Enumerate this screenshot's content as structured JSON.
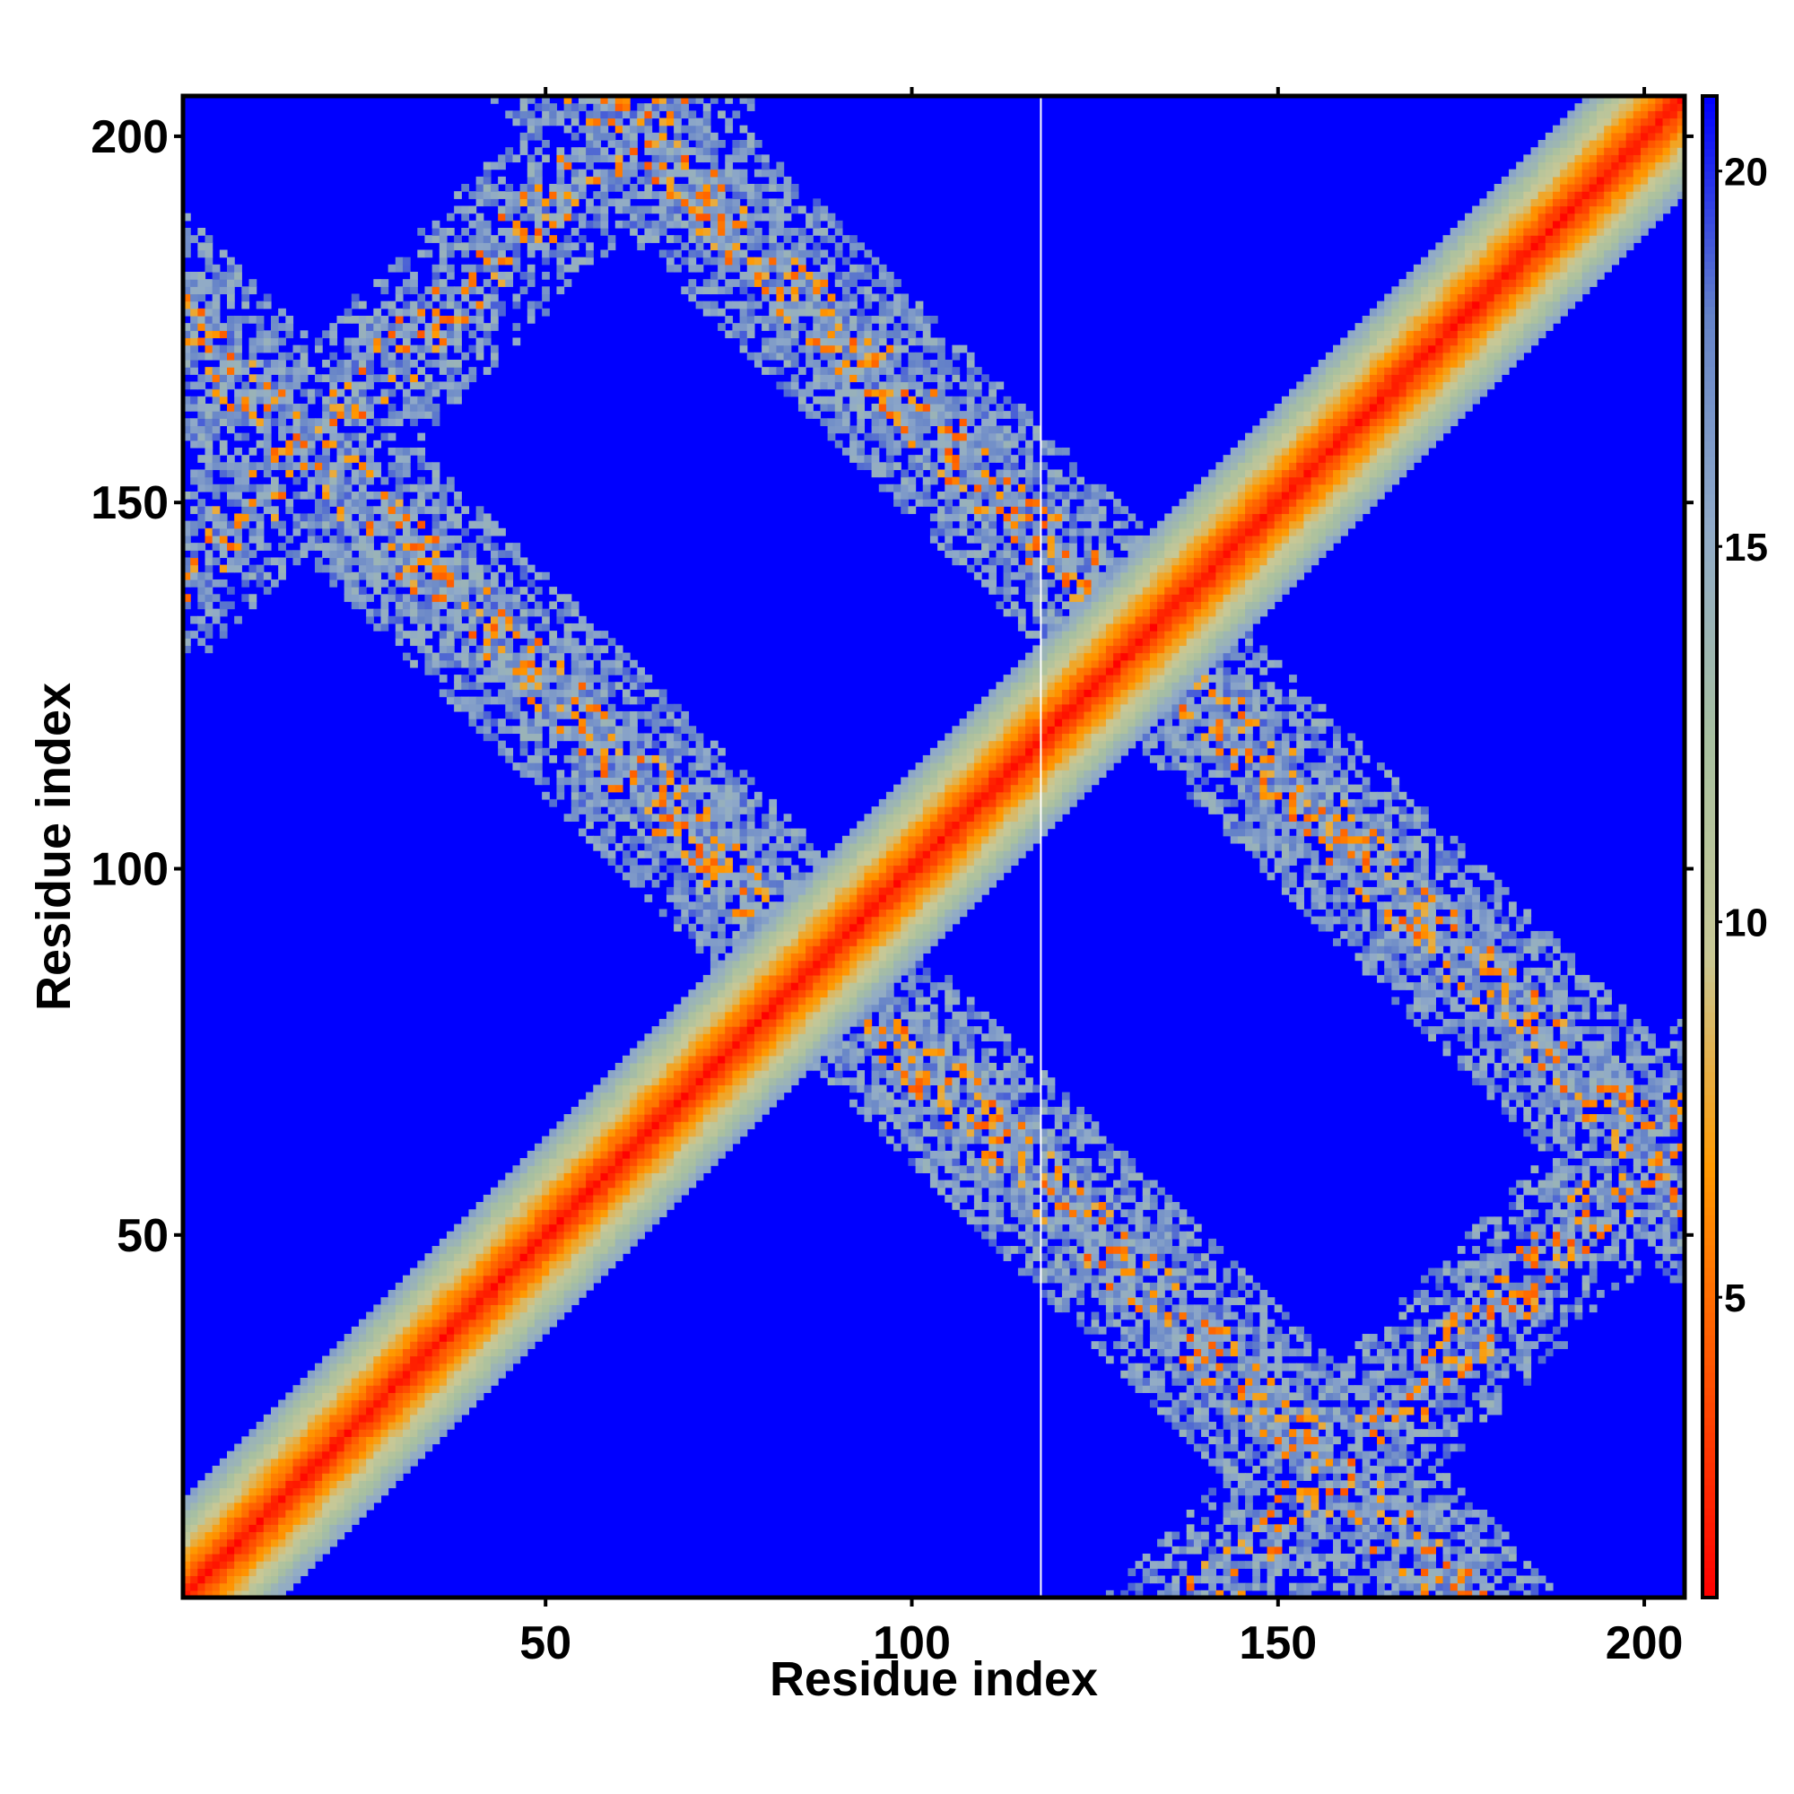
{
  "chart_data": {
    "type": "heatmap",
    "title": "",
    "xlabel": "Residue index",
    "ylabel": "Residue index",
    "xlim": [
      1,
      205
    ],
    "ylim": [
      1,
      205
    ],
    "x_ticks": [
      "50",
      "100",
      "150",
      "200"
    ],
    "y_ticks": [
      "50",
      "100",
      "150",
      "200"
    ],
    "colorbar": {
      "range": [
        1,
        21
      ],
      "ticks": [
        "5",
        "10",
        "15",
        "20"
      ],
      "colors": [
        "#ff0000",
        "#ff5000",
        "#ff9900",
        "#c8c896",
        "#a8c0a0",
        "#90aac8",
        "#6482c8",
        "#0000ff"
      ]
    },
    "matrix_description_values": {
      "diagonal_value": 1,
      "max_value": 21,
      "main_band_halfwidth_residues": 13,
      "antidiagonal_band_sum_1": 175,
      "antidiagonal_band_sum_2": 263,
      "antidiagonal_band_halfwidth_residues": 11,
      "corner_band_offset": 140,
      "gap_column_x": 118
    }
  }
}
